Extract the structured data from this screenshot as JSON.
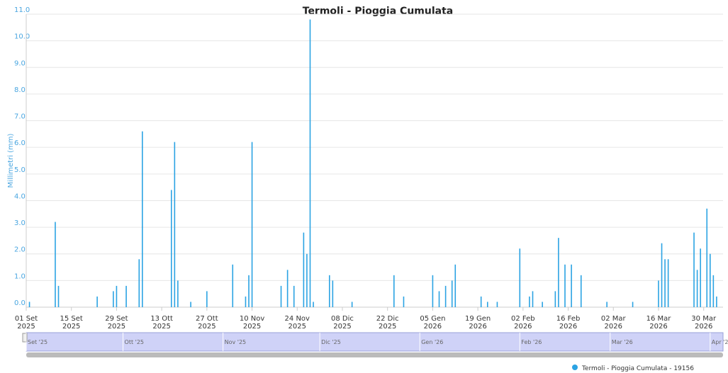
{
  "chart_data": {
    "type": "bar",
    "title": "Termoli - Pioggia Cumulata",
    "y_label": "Millimetri (mm)",
    "x": [
      "2025-09-02",
      "2025-09-10",
      "2025-09-11",
      "2025-09-23",
      "2025-09-28",
      "2025-09-29",
      "2025-10-02",
      "2025-10-06",
      "2025-10-07",
      "2025-10-16",
      "2025-10-17",
      "2025-10-18",
      "2025-10-22",
      "2025-10-27",
      "2025-11-04",
      "2025-11-08",
      "2025-11-09",
      "2025-11-10",
      "2025-11-19",
      "2025-11-21",
      "2025-11-23",
      "2025-11-26",
      "2025-11-27",
      "2025-11-28",
      "2025-11-29",
      "2025-12-04",
      "2025-12-05",
      "2025-12-11",
      "2025-12-24",
      "2025-12-27",
      "2026-01-05",
      "2026-01-07",
      "2026-01-09",
      "2026-01-11",
      "2026-01-12",
      "2026-01-20",
      "2026-01-22",
      "2026-01-25",
      "2026-02-01",
      "2026-02-04",
      "2026-02-05",
      "2026-02-08",
      "2026-02-12",
      "2026-02-13",
      "2026-02-15",
      "2026-02-17",
      "2026-02-20",
      "2026-02-28",
      "2026-03-08",
      "2026-03-16",
      "2026-03-17",
      "2026-03-18",
      "2026-03-19",
      "2026-03-27",
      "2026-03-28",
      "2026-03-29",
      "2026-03-31",
      "2026-04-01",
      "2026-04-02",
      "2026-04-03"
    ],
    "series": [
      {
        "name": "Termoli - Pioggia Cumulata - 19156",
        "color": "#2ba3e3",
        "values": [
          0.2,
          3.2,
          0.8,
          0.4,
          0.6,
          0.8,
          0.8,
          1.8,
          6.6,
          4.4,
          6.2,
          1.0,
          0.2,
          0.6,
          1.6,
          0.4,
          1.2,
          6.2,
          0.8,
          1.4,
          0.8,
          2.8,
          2.0,
          10.8,
          0.2,
          1.2,
          1.0,
          0.2,
          1.2,
          0.4,
          1.2,
          0.6,
          0.8,
          1.0,
          1.6,
          0.4,
          0.2,
          0.2,
          2.2,
          0.4,
          0.6,
          0.2,
          0.6,
          2.6,
          1.6,
          1.6,
          1.2,
          0.2,
          0.2,
          1.0,
          2.4,
          1.8,
          1.8,
          2.8,
          1.4,
          2.2,
          3.7,
          2.0,
          1.2,
          0.4
        ]
      }
    ],
    "xlim": [
      "2025-09-01",
      "2026-04-05"
    ],
    "xticks": [
      {
        "value": "2025-09-01",
        "label": "01 Set 2025"
      },
      {
        "value": "2025-09-15",
        "label": "15 Set 2025"
      },
      {
        "value": "2025-09-29",
        "label": "29 Set 2025"
      },
      {
        "value": "2025-10-13",
        "label": "13 Ott 2025"
      },
      {
        "value": "2025-10-27",
        "label": "27 Ott 2025"
      },
      {
        "value": "2025-11-10",
        "label": "10 Nov 2025"
      },
      {
        "value": "2025-11-24",
        "label": "24 Nov 2025"
      },
      {
        "value": "2025-12-08",
        "label": "08 Dic 2025"
      },
      {
        "value": "2025-12-22",
        "label": "22 Dic 2025"
      },
      {
        "value": "2026-01-05",
        "label": "05 Gen 2026"
      },
      {
        "value": "2026-01-19",
        "label": "19 Gen 2026"
      },
      {
        "value": "2026-02-02",
        "label": "02 Feb 2026"
      },
      {
        "value": "2026-02-16",
        "label": "16 Feb 2026"
      },
      {
        "value": "2026-03-02",
        "label": "02 Mar 2026"
      },
      {
        "value": "2026-03-16",
        "label": "16 Mar 2026"
      },
      {
        "value": "2026-03-30",
        "label": "30 Mar 2026"
      }
    ],
    "ylim": [
      0,
      11
    ],
    "yticks": [
      {
        "value": 0,
        "label": "0.0"
      },
      {
        "value": 1,
        "label": "1.0"
      },
      {
        "value": 2,
        "label": "2.0"
      },
      {
        "value": 3,
        "label": "3.0"
      },
      {
        "value": 4,
        "label": "4.0"
      },
      {
        "value": 5,
        "label": "5.0"
      },
      {
        "value": 6,
        "label": "6.0"
      },
      {
        "value": 7,
        "label": "7.0"
      },
      {
        "value": 8,
        "label": "8.0"
      },
      {
        "value": 9,
        "label": "9.0"
      },
      {
        "value": 10,
        "label": "10.0"
      },
      {
        "value": 11,
        "label": "11.0"
      }
    ],
    "grid": true,
    "legend": "bottom-right",
    "navigator": {
      "ticks": [
        {
          "value": "2025-09-01",
          "label": "Set '25"
        },
        {
          "value": "2025-10-01",
          "label": "Ott '25"
        },
        {
          "value": "2025-11-01",
          "label": "Nov '25"
        },
        {
          "value": "2025-12-01",
          "label": "Dic '25"
        },
        {
          "value": "2026-01-01",
          "label": "Gen '26"
        },
        {
          "value": "2026-02-01",
          "label": "Feb '26"
        },
        {
          "value": "2026-03-01",
          "label": "Mar '26"
        },
        {
          "value": "2026-04-01",
          "label": "Apr '2"
        }
      ]
    }
  }
}
